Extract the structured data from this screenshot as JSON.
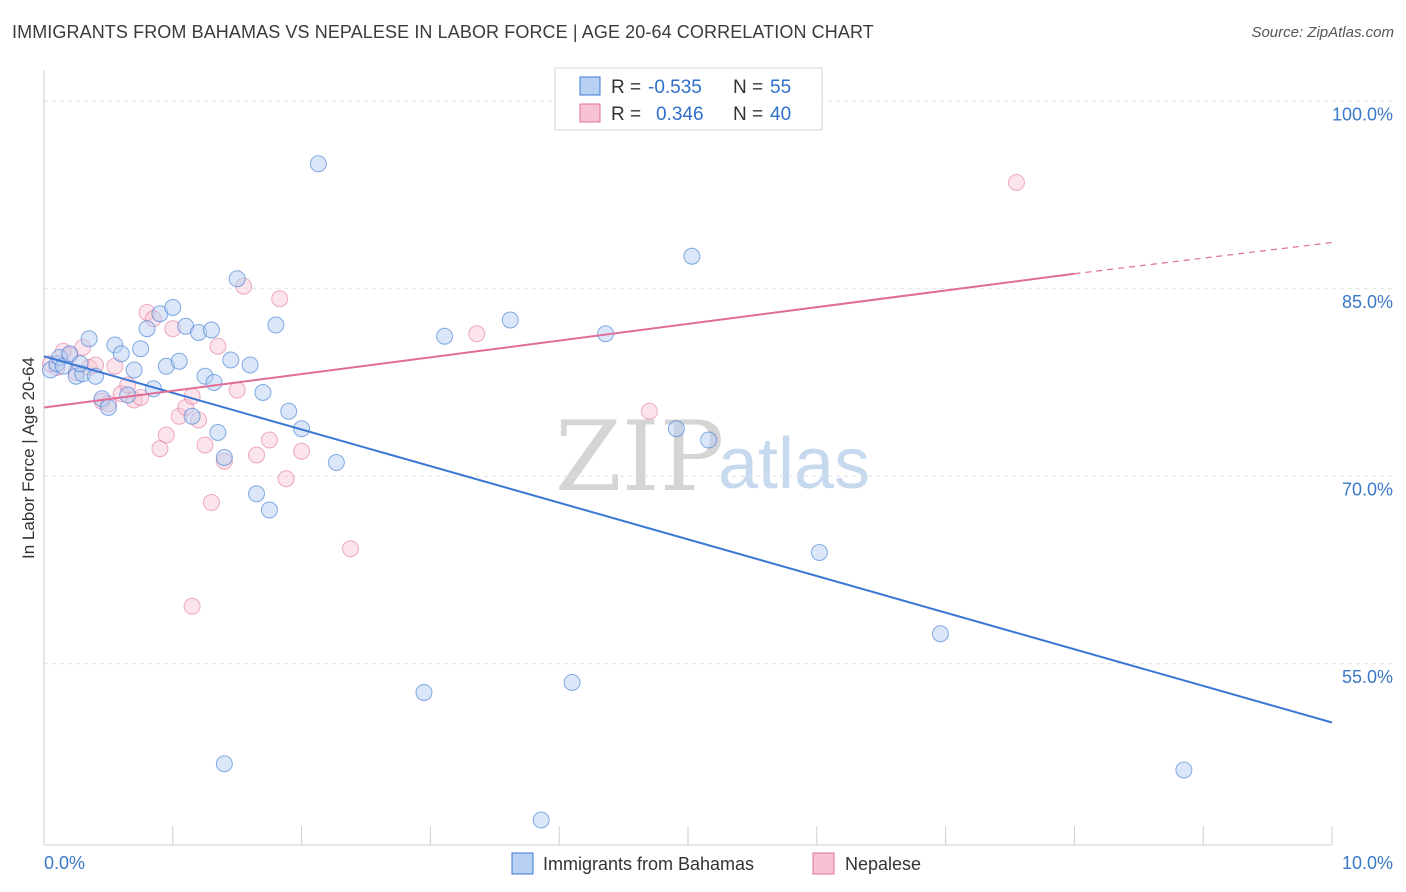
{
  "header": {
    "title": "IMMIGRANTS FROM BAHAMAS VS NEPALESE IN LABOR FORCE | AGE 20-64 CORRELATION CHART",
    "source": "Source: ZipAtlas.com"
  },
  "watermark": {
    "zip": "ZIP",
    "atlas": "atlas"
  },
  "stats": [
    {
      "r_label": "R =",
      "r_value": "-0.535",
      "n_label": "N =",
      "n_value": "55"
    },
    {
      "r_label": "R =",
      "r_value": "0.346",
      "n_label": "N =",
      "n_value": "40"
    }
  ],
  "chart_data": {
    "type": "scatter",
    "title": "IMMIGRANTS FROM BAHAMAS VS NEPALESE IN LABOR FORCE | AGE 20-64 CORRELATION CHART",
    "xlabel": "",
    "ylabel": "In Labor Force | Age 20-64",
    "xlim": [
      0,
      10
    ],
    "ylim": [
      40.5,
      102.5
    ],
    "x_ticks": [
      "0.0%",
      "10.0%"
    ],
    "y_ticks": [
      {
        "value": 100,
        "label": "100.0%"
      },
      {
        "value": 85,
        "label": "85.0%"
      },
      {
        "value": 70,
        "label": "70.0%"
      },
      {
        "value": 55,
        "label": "55.0%"
      }
    ],
    "grid": "horizontal dashed",
    "legend": "bottom-center",
    "colors": {
      "bahamas": "#3a78d4",
      "nepalese": "#e06d98",
      "bahamas_fill": "#b8d0f2",
      "nepalese_fill": "#f7c3d3"
    },
    "series": [
      {
        "name": "Immigrants from Bahamas",
        "color": "#3a78d4",
        "trend": {
          "x": [
            0,
            10
          ],
          "y": [
            79.6,
            50.3
          ]
        },
        "points": [
          [
            0.05,
            78.5
          ],
          [
            0.1,
            79.0
          ],
          [
            0.12,
            79.5
          ],
          [
            0.15,
            78.8
          ],
          [
            0.2,
            79.8
          ],
          [
            0.25,
            78.0
          ],
          [
            0.3,
            78.2
          ],
          [
            0.35,
            81.0
          ],
          [
            0.4,
            78.0
          ],
          [
            0.28,
            79.0
          ],
          [
            0.45,
            76.2
          ],
          [
            0.5,
            75.5
          ],
          [
            0.55,
            80.5
          ],
          [
            0.6,
            79.8
          ],
          [
            0.65,
            76.5
          ],
          [
            0.7,
            78.5
          ],
          [
            0.75,
            80.2
          ],
          [
            0.8,
            81.8
          ],
          [
            0.85,
            77.0
          ],
          [
            0.9,
            83.0
          ],
          [
            0.95,
            78.8
          ],
          [
            1.0,
            83.5
          ],
          [
            1.05,
            79.2
          ],
          [
            1.1,
            82.0
          ],
          [
            1.15,
            74.8
          ],
          [
            1.2,
            81.5
          ],
          [
            1.25,
            78.0
          ],
          [
            1.3,
            81.7
          ],
          [
            1.32,
            77.5
          ],
          [
            1.35,
            73.5
          ],
          [
            1.4,
            71.5
          ],
          [
            1.45,
            79.3
          ],
          [
            1.5,
            85.8
          ],
          [
            1.6,
            78.9
          ],
          [
            1.65,
            68.6
          ],
          [
            1.7,
            76.7
          ],
          [
            1.75,
            67.3
          ],
          [
            1.8,
            82.1
          ],
          [
            1.9,
            75.2
          ],
          [
            2.0,
            73.8
          ],
          [
            2.13,
            95.0
          ],
          [
            2.27,
            71.1
          ],
          [
            3.11,
            81.2
          ],
          [
            3.62,
            82.5
          ],
          [
            4.36,
            81.4
          ],
          [
            5.03,
            87.6
          ],
          [
            4.91,
            73.8
          ],
          [
            5.16,
            72.9
          ],
          [
            6.02,
            63.9
          ],
          [
            6.96,
            57.4
          ],
          [
            2.95,
            52.7
          ],
          [
            4.1,
            53.5
          ],
          [
            1.4,
            47.0
          ],
          [
            3.86,
            42.5
          ],
          [
            8.85,
            46.5
          ]
        ]
      },
      {
        "name": "Nepalese",
        "color": "#e06d98",
        "trend": {
          "x": [
            0,
            8.0
          ],
          "y": [
            75.5,
            86.2
          ],
          "dashed_to": [
            10,
            88.7
          ]
        },
        "points": [
          [
            0.05,
            79.0
          ],
          [
            0.1,
            78.7
          ],
          [
            0.15,
            80.0
          ],
          [
            0.2,
            79.7
          ],
          [
            0.25,
            78.3
          ],
          [
            0.3,
            80.3
          ],
          [
            0.35,
            78.7
          ],
          [
            0.4,
            78.9
          ],
          [
            0.45,
            76.0
          ],
          [
            0.5,
            75.8
          ],
          [
            0.55,
            78.8
          ],
          [
            0.6,
            76.6
          ],
          [
            0.65,
            77.3
          ],
          [
            0.7,
            76.1
          ],
          [
            0.75,
            76.3
          ],
          [
            0.8,
            83.1
          ],
          [
            0.85,
            82.6
          ],
          [
            0.9,
            72.2
          ],
          [
            0.95,
            73.3
          ],
          [
            1.0,
            81.8
          ],
          [
            1.05,
            74.8
          ],
          [
            1.1,
            75.5
          ],
          [
            1.15,
            76.4
          ],
          [
            1.2,
            74.5
          ],
          [
            1.25,
            72.5
          ],
          [
            1.3,
            67.9
          ],
          [
            1.35,
            80.4
          ],
          [
            1.4,
            71.2
          ],
          [
            1.5,
            76.9
          ],
          [
            1.55,
            85.2
          ],
          [
            1.65,
            71.7
          ],
          [
            1.75,
            72.9
          ],
          [
            1.88,
            69.8
          ],
          [
            2.0,
            72.0
          ],
          [
            1.83,
            84.2
          ],
          [
            2.38,
            64.2
          ],
          [
            3.36,
            81.4
          ],
          [
            4.7,
            75.2
          ],
          [
            7.55,
            93.5
          ],
          [
            1.15,
            59.6
          ]
        ]
      }
    ]
  },
  "legend": {
    "items": [
      {
        "label": "Immigrants from Bahamas"
      },
      {
        "label": "Nepalese"
      }
    ]
  }
}
